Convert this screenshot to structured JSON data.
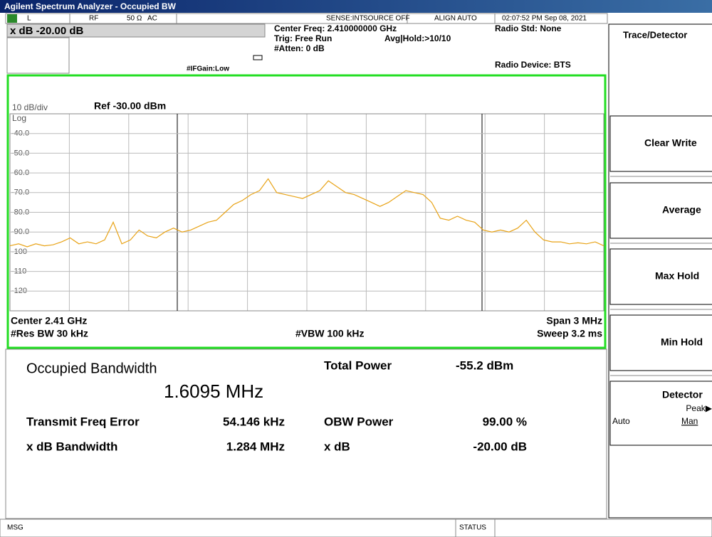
{
  "window_title": "Agilent Spectrum Analyzer - Occupied BW",
  "status_row": {
    "input": "L",
    "rf": "RF",
    "impedance": "50 Ω",
    "coupling": "AC",
    "sense": "SENSE:INT",
    "source": "SOURCE OFF",
    "align": "ALIGN AUTO",
    "datetime": "02:07:52 PM Sep 08, 2021"
  },
  "header": {
    "active_function": "x dB -20.00 dB",
    "if_gain": "#IFGain:Low",
    "center_freq": "Center Freq: 2.410000000 GHz",
    "trig": "Trig: Free Run",
    "avg_hold": "Avg|Hold:>10/10",
    "atten": "#Atten: 0 dB",
    "radio_std": "Radio Std: None",
    "radio_device": "Radio Device: BTS"
  },
  "chart_data": {
    "type": "line",
    "scale_label": "10 dB/div",
    "ref_label": "Ref -30.00 dBm",
    "scale_type": "Log",
    "color": "#e8a317",
    "grid": true,
    "ylim": [
      -130,
      -30
    ],
    "yticks": [
      {
        "value": -40,
        "label": "-40.0"
      },
      {
        "value": -50,
        "label": "-50.0"
      },
      {
        "value": -60,
        "label": "-60.0"
      },
      {
        "value": -70,
        "label": "-70.0"
      },
      {
        "value": -80,
        "label": "-80.0"
      },
      {
        "value": -90,
        "label": "-90.0"
      },
      -100,
      -110,
      -120
    ],
    "values": [
      -97,
      -96,
      -97.5,
      -96,
      -97,
      -96.5,
      -95,
      -93,
      -96,
      -95,
      -96,
      -94,
      -85,
      -96,
      -94,
      -89,
      -92,
      -93,
      -90,
      -88,
      -90,
      -89,
      -87,
      -85,
      -84,
      -80,
      -76,
      -74,
      -71,
      -69,
      -63,
      -70,
      -71,
      -72,
      -73,
      -71,
      -69,
      -64,
      -67,
      -70,
      -71,
      -73,
      -75,
      -77,
      -75,
      -72,
      -69,
      -70,
      -71,
      -75,
      -83,
      -84,
      -82,
      -84,
      -85,
      -89,
      -90,
      -89,
      -90,
      -88,
      -84,
      -90,
      -94,
      -95,
      -95,
      -96,
      -95.5,
      -96,
      -95,
      -97
    ],
    "center": "Center 2.41 GHz",
    "res_bw": "#Res BW 30 kHz",
    "vbw": "#VBW 100 kHz",
    "span": "Span 3 MHz",
    "sweep": "Sweep 3.2 ms"
  },
  "results": {
    "title": "Occupied Bandwidth",
    "obw": "1.6095 MHz",
    "total_power_label": "Total Power",
    "total_power": "-55.2 dBm",
    "freq_error_label": "Transmit Freq Error",
    "freq_error": "54.146 kHz",
    "obw_power_label": "OBW Power",
    "obw_power": "99.00 %",
    "xdb_bw_label": "x dB Bandwidth",
    "xdb_bw": "1.284 MHz",
    "xdb_label": "x dB",
    "xdb": "-20.00 dB"
  },
  "softkeys": {
    "title": "Trace/Detector",
    "keys": [
      "Clear Write",
      "Average",
      "Max Hold",
      "Min Hold"
    ],
    "detector": "Detector",
    "detector_value": "Peak▶",
    "auto": "Auto",
    "man": "Man"
  },
  "status_bar": {
    "msg": "MSG",
    "status": "STATUS"
  }
}
